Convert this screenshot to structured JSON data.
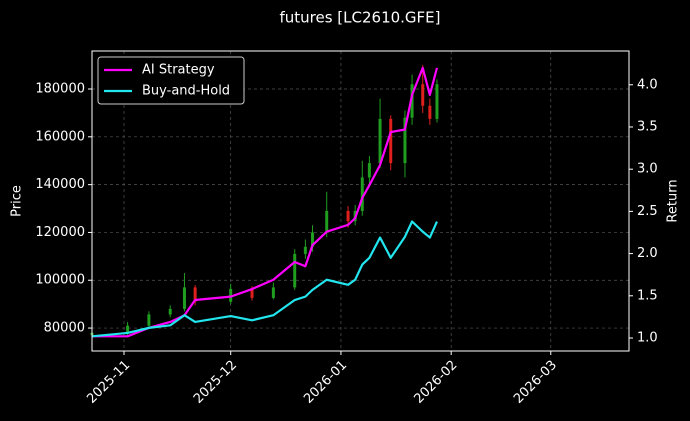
{
  "chart_data": {
    "type": "candlestick",
    "title": "futures [LC2610.GFE]",
    "ylabel": "Price",
    "y2label": "Return",
    "x": [
      "2025-10-23",
      "2025-11-02",
      "2025-11-08",
      "2025-11-14",
      "2025-11-18",
      "2025-11-21",
      "2025-12-01",
      "2025-12-07",
      "2025-12-13",
      "2025-12-19",
      "2025-12-22",
      "2025-12-24",
      "2025-12-28",
      "2026-01-03",
      "2026-01-05",
      "2026-01-07",
      "2026-01-09",
      "2026-01-12",
      "2026-01-15",
      "2026-01-19",
      "2026-01-21",
      "2026-01-24",
      "2026-01-26",
      "2026-01-28"
    ],
    "open": [
      77000,
      78000,
      81000,
      85700,
      88000,
      97000,
      91000,
      96400,
      92600,
      97000,
      111000,
      114000,
      120000,
      129000,
      124700,
      129000,
      143000,
      149000,
      167500,
      149000,
      168000,
      182000,
      173000,
      167500
    ],
    "high": [
      79500,
      82500,
      87000,
      89500,
      103000,
      98000,
      98500,
      97500,
      99000,
      113000,
      117000,
      123000,
      137000,
      131000,
      131500,
      150000,
      152000,
      176000,
      169000,
      171000,
      186000,
      190000,
      176000,
      184000
    ],
    "low": [
      76000,
      77000,
      80000,
      84500,
      87000,
      89500,
      90000,
      91500,
      92000,
      96000,
      109000,
      112000,
      118000,
      122000,
      123000,
      127000,
      140000,
      147000,
      146000,
      143000,
      165000,
      170000,
      165000,
      166000
    ],
    "close": [
      78000,
      81000,
      85700,
      88000,
      97000,
      91000,
      96400,
      92600,
      97000,
      111000,
      114000,
      120000,
      129000,
      124700,
      129000,
      143000,
      149000,
      167500,
      149000,
      168000,
      182000,
      173000,
      167500,
      182000
    ],
    "up_color": "#1f9e1f",
    "down_color": "#e0201c",
    "series": [
      {
        "name": "AI Strategy",
        "color": "#ff00ff",
        "axis": "y2",
        "values": [
          1.02,
          1.02,
          1.12,
          1.19,
          1.27,
          1.45,
          1.49,
          1.58,
          1.69,
          1.9,
          1.85,
          2.1,
          2.26,
          2.34,
          2.42,
          2.66,
          2.81,
          3.05,
          3.44,
          3.47,
          3.88,
          4.2,
          3.88,
          4.2
        ]
      },
      {
        "name": "Buy-and-Hold",
        "color": "#22e5ee",
        "axis": "y2",
        "values": [
          1.02,
          1.06,
          1.12,
          1.15,
          1.27,
          1.19,
          1.26,
          1.21,
          1.27,
          1.45,
          1.49,
          1.57,
          1.69,
          1.63,
          1.69,
          1.87,
          1.95,
          2.19,
          1.95,
          2.2,
          2.38,
          2.26,
          2.19,
          2.38
        ]
      }
    ],
    "xlim": [
      "2025-10-23",
      "2026-03-23"
    ],
    "xticks": [
      {
        "value": "2025-11-01",
        "label": "2025-11"
      },
      {
        "value": "2025-12-01",
        "label": "2025-12"
      },
      {
        "value": "2026-01-01",
        "label": "2026-01"
      },
      {
        "value": "2026-02-01",
        "label": "2026-02"
      },
      {
        "value": "2026-03-01",
        "label": "2026-03"
      }
    ],
    "ylim": [
      70400,
      195900
    ],
    "yticks": [
      80000,
      100000,
      120000,
      140000,
      160000,
      180000
    ],
    "y2lim": [
      0.846,
      4.4
    ],
    "y2ticks": [
      {
        "value": 1,
        "label": "1.0"
      },
      {
        "value": 1.5,
        "label": "1.5"
      },
      {
        "value": 2,
        "label": "2.0"
      },
      {
        "value": 2.5,
        "label": "2.5"
      },
      {
        "value": 3,
        "label": "3.0"
      },
      {
        "value": 3.5,
        "label": "3.5"
      },
      {
        "value": 4,
        "label": "4.0"
      }
    ],
    "grid": true,
    "legend": "upper left"
  }
}
